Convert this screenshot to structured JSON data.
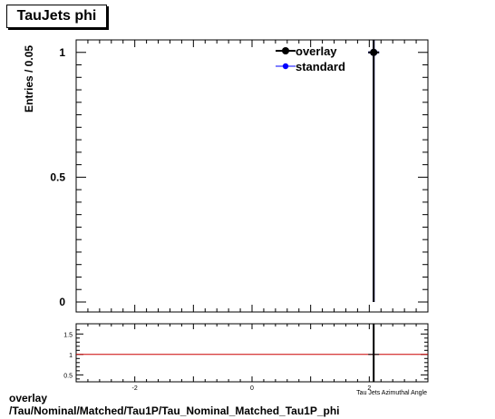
{
  "chart_data": {
    "type": "scatter",
    "title": "TauJets phi",
    "ylabel": "Entries / 0.05",
    "xlabel": "Tau Jets Azimuthal Angle",
    "xlim": [
      -3.0,
      3.0
    ],
    "ylim": [
      -0.04,
      1.05
    ],
    "main_y_ticks": [
      "0",
      "0.5",
      "1"
    ],
    "ratio_ylim": [
      0.33,
      1.75
    ],
    "ratio_y_ticks": [
      "0.5",
      "1",
      "1.5"
    ],
    "x_ticks": [
      "-2",
      "0",
      "2"
    ],
    "legend": [
      "overlay",
      "standard"
    ],
    "legend_position": "top-right",
    "grid": false,
    "series": [
      {
        "name": "overlay",
        "color": "#000000",
        "points": [
          {
            "x": 2.075,
            "y": 1.0,
            "yerr": 1.0
          }
        ]
      },
      {
        "name": "standard",
        "color": "#0000ff",
        "points": [
          {
            "x": 2.075,
            "y": 1.0,
            "yerr": 1.0
          }
        ]
      }
    ],
    "ratio": {
      "reference": 1.0,
      "line_color": "#cc0000",
      "points": [
        {
          "x": 2.075,
          "y": 1.0
        }
      ]
    }
  },
  "footer": {
    "line1": "overlay",
    "line2": "/Tau/Nominal/Matched/Tau1P/Tau_Nominal_Matched_Tau1P_phi"
  }
}
